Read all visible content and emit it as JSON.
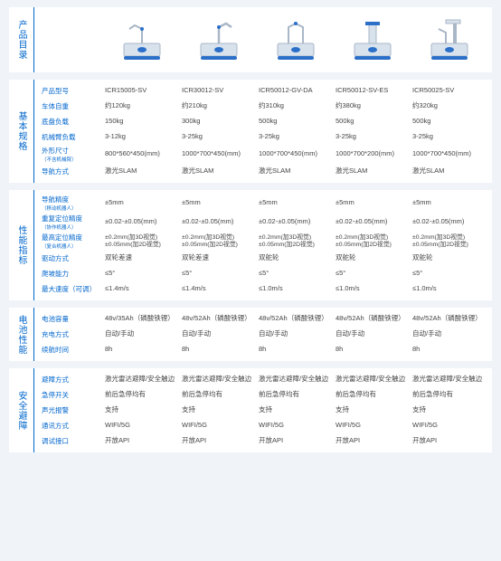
{
  "sections": {
    "catalog": "产品目录",
    "basic": "基本规格",
    "perf": "性能指标",
    "battery": "电池性能",
    "safety": "安全避障"
  },
  "header": {
    "model_label": "产品型号",
    "models": [
      "ICR15005-SV",
      "ICR30012-SV",
      "ICR50012-GV-DA",
      "ICR50012-SV-ES",
      "ICR50025-SV"
    ]
  },
  "basic_rows": [
    {
      "label": "车体自重",
      "v": [
        "约120kg",
        "约210kg",
        "约310kg",
        "约380kg",
        "约320kg"
      ]
    },
    {
      "label": "底盘负载",
      "v": [
        "150kg",
        "300kg",
        "500kg",
        "500kg",
        "500kg"
      ]
    },
    {
      "label": "机械臂负载",
      "v": [
        "3-12kg",
        "3-25kg",
        "3-25kg",
        "3-25kg",
        "3-25kg"
      ]
    },
    {
      "label": "外形尺寸",
      "sub": "（不含机械臂）",
      "v": [
        "800*560*450(mm)",
        "1000*700*450(mm)",
        "1000*700*450(mm)",
        "1000*700*200(mm)",
        "1000*700*450(mm)"
      ]
    },
    {
      "label": "导航方式",
      "v": [
        "激光SLAM",
        "激光SLAM",
        "激光SLAM",
        "激光SLAM",
        "激光SLAM"
      ]
    }
  ],
  "perf_rows": [
    {
      "label": "导航精度",
      "sub": "（移动机器人）",
      "v": [
        "±5mm",
        "±5mm",
        "±5mm",
        "±5mm",
        "±5mm"
      ]
    },
    {
      "label": "重复定位精度",
      "sub": "（协作机器人）",
      "v": [
        "±0.02-±0.05(mm)",
        "±0.02-±0.05(mm)",
        "±0.02-±0.05(mm)",
        "±0.02-±0.05(mm)",
        "±0.02-±0.05(mm)"
      ]
    },
    {
      "label": "最高定位精度",
      "sub": "（复合机器人）",
      "two": true,
      "v1": [
        "±0.2mm(加3D视觉)",
        "±0.2mm(加3D视觉)",
        "±0.2mm(加3D视觉)",
        "±0.2mm(加3D视觉)",
        "±0.2mm(加3D视觉)"
      ],
      "v2": [
        "±0.05mm(加2D视觉)",
        "±0.05mm(加2D视觉)",
        "±0.05mm(加2D视觉)",
        "±0.05mm(加2D视觉)",
        "±0.05mm(加2D视觉)"
      ]
    },
    {
      "label": "驱动方式",
      "v": [
        "双轮差速",
        "双轮差速",
        "双舵轮",
        "双舵轮",
        "双舵轮"
      ]
    },
    {
      "label": "爬坡能力",
      "v": [
        "≤5°",
        "≤5°",
        "≤5°",
        "≤5°",
        "≤5°"
      ]
    },
    {
      "label": "最大速度（可调）",
      "v": [
        "≤1.4m/s",
        "≤1.4m/s",
        "≤1.0m/s",
        "≤1.0m/s",
        "≤1.0m/s"
      ]
    }
  ],
  "battery_rows": [
    {
      "label": "电池容量",
      "v": [
        "48v/35Ah（磷酸铁锂）",
        "48v/52Ah（磷酸铁锂）",
        "48v/52Ah（磷酸铁锂）",
        "48v/52Ah（磷酸铁锂）",
        "48v/52Ah（磷酸铁锂）"
      ]
    },
    {
      "label": "充电方式",
      "v": [
        "自动/手动",
        "自动/手动",
        "自动/手动",
        "自动/手动",
        "自动/手动"
      ]
    },
    {
      "label": "续航时间",
      "v": [
        "8h",
        "8h",
        "8h",
        "8h",
        "8h"
      ]
    }
  ],
  "safety_rows": [
    {
      "label": "避障方式",
      "v": [
        "激光雷达避障/安全触边",
        "激光雷达避障/安全触边",
        "激光雷达避障/安全触边",
        "激光雷达避障/安全触边",
        "激光雷达避障/安全触边"
      ]
    },
    {
      "label": "急停开关",
      "v": [
        "前后急停均有",
        "前后急停均有",
        "前后急停均有",
        "前后急停均有",
        "前后急停均有"
      ]
    },
    {
      "label": "声光报警",
      "v": [
        "支持",
        "支持",
        "支持",
        "支持",
        "支持"
      ]
    },
    {
      "label": "通讯方式",
      "v": [
        "WIFI/5G",
        "WIFI/5G",
        "WIFI/5G",
        "WIFI/5G",
        "WIFI/5G"
      ]
    },
    {
      "label": "调试接口",
      "v": [
        "开放API",
        "开放API",
        "开放API",
        "开放API",
        "开放API"
      ]
    }
  ],
  "colors": {
    "accent": "#0066cc",
    "bg": "#f0f4f8",
    "panel": "#ffffff",
    "text": "#444444",
    "robot_base": "#d8e2ec",
    "robot_accent": "#2b6fc9",
    "robot_stroke": "#a9b7c7"
  }
}
